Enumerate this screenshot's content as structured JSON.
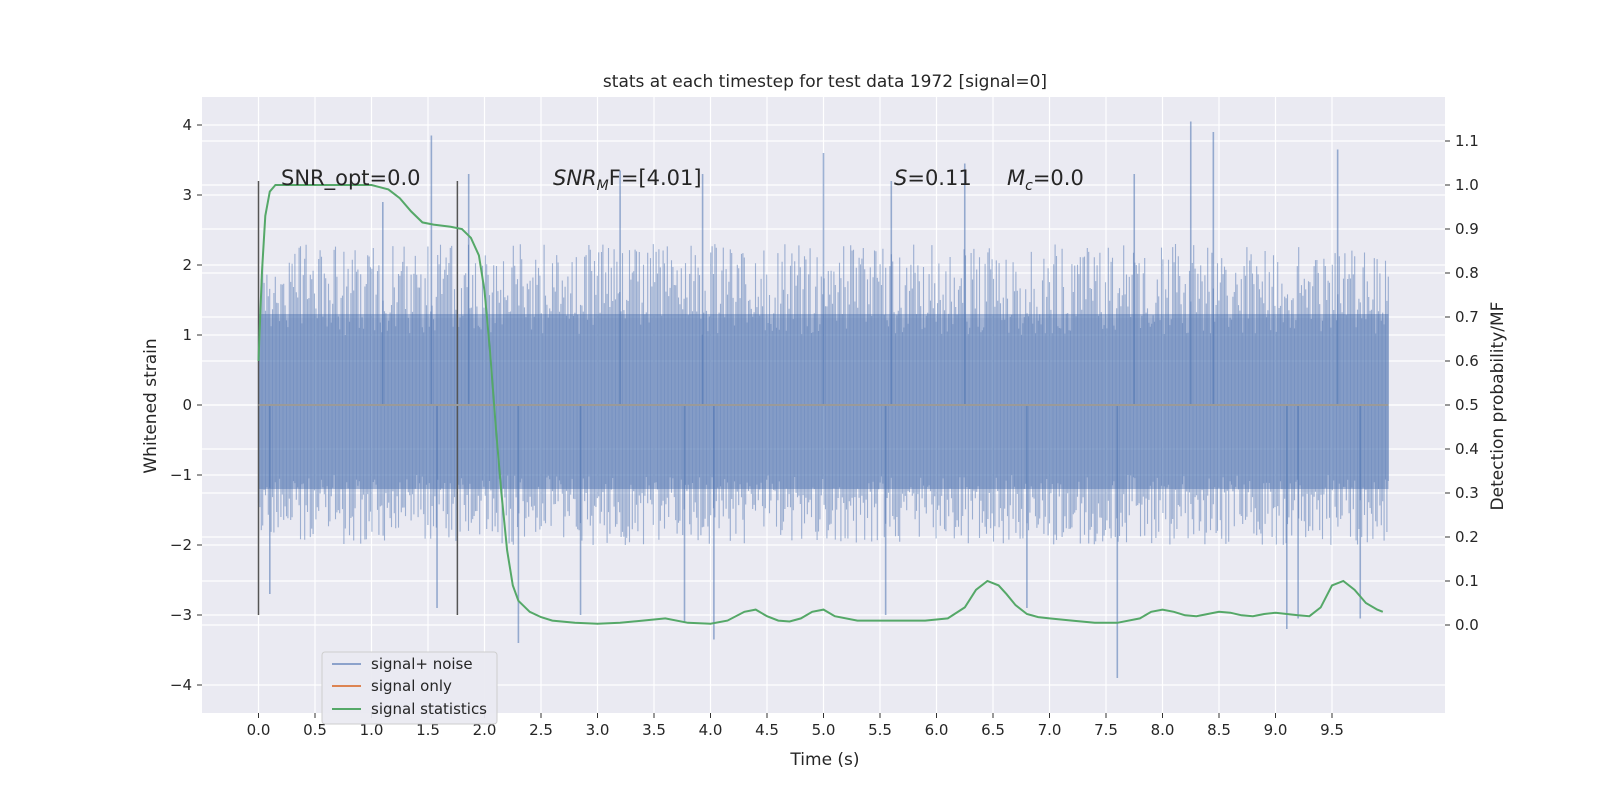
{
  "chart_data": {
    "type": "line",
    "title": "stats at each timestep for test data 1972 [signal=0]",
    "xlabel": "Time (s)",
    "ylabel_left": "Whitened strain",
    "ylabel_right": "Detection probability/MF",
    "xlim": [
      -0.5,
      10.5
    ],
    "ylim_left": [
      -4.4,
      4.4
    ],
    "ylim_right": [
      -0.2,
      1.2
    ],
    "x_ticks": [
      "0.0",
      "0.5",
      "1.0",
      "1.5",
      "2.0",
      "2.5",
      "3.0",
      "3.5",
      "4.0",
      "4.5",
      "5.0",
      "5.5",
      "6.0",
      "6.5",
      "7.0",
      "7.5",
      "8.0",
      "8.5",
      "9.0",
      "9.5"
    ],
    "y_left_ticks": [
      "4",
      "3",
      "2",
      "1",
      "0",
      "−1",
      "−2",
      "−3",
      "−4"
    ],
    "y_right_ticks": [
      "1.1",
      "1.0",
      "0.9",
      "0.8",
      "0.7",
      "0.6",
      "0.5",
      "0.4",
      "0.3",
      "0.2",
      "0.1",
      "0.0"
    ],
    "grid": true,
    "legend_position": "lower-left",
    "colors": {
      "background": "#eaeaf2",
      "grid": "#ffffff",
      "noise": "#4c72b0",
      "signal_only": "#dd8452",
      "statistics": "#55a868",
      "marker": "#555555"
    },
    "annotations": {
      "snr_opt": "SNR_opt=0.0",
      "snr_mf_prefix": "SNR",
      "snr_mf_sub": "M",
      "snr_mf_suffix": "F=[4.01]",
      "s_label": "S",
      "s_value": "=0.11",
      "mc_label": "M",
      "mc_sub": "c",
      "mc_value": "=0.0"
    },
    "vertical_markers": [
      0.0,
      1.76
    ],
    "marker_range_left": [
      -3.0,
      3.2
    ],
    "series": [
      {
        "name": "signal+ noise",
        "kind": "strain",
        "x_range": [
          0.0,
          10.0
        ],
        "envelope_left": [
          -2.0,
          2.3
        ],
        "spikes": [
          {
            "x": 1.53,
            "y": 3.85
          },
          {
            "x": 1.58,
            "y": -2.9
          },
          {
            "x": 1.86,
            "y": 3.3
          },
          {
            "x": 2.3,
            "y": -3.4
          },
          {
            "x": 4.03,
            "y": -3.35
          },
          {
            "x": 3.93,
            "y": 3.3
          },
          {
            "x": 5.0,
            "y": 3.6
          },
          {
            "x": 5.55,
            "y": -3.0
          },
          {
            "x": 7.6,
            "y": -3.9
          },
          {
            "x": 8.25,
            "y": 4.05
          },
          {
            "x": 8.45,
            "y": 3.9
          },
          {
            "x": 9.1,
            "y": -3.2
          },
          {
            "x": 9.55,
            "y": 3.65
          },
          {
            "x": 7.75,
            "y": 3.3
          },
          {
            "x": 6.25,
            "y": 3.45
          },
          {
            "x": 0.1,
            "y": -2.7
          },
          {
            "x": 3.2,
            "y": 3.35
          },
          {
            "x": 5.6,
            "y": 3.2
          },
          {
            "x": 2.85,
            "y": -3.0
          },
          {
            "x": 3.77,
            "y": -3.1
          },
          {
            "x": 9.2,
            "y": -3.05
          },
          {
            "x": 6.8,
            "y": -2.9
          },
          {
            "x": 9.75,
            "y": -3.05
          },
          {
            "x": 1.1,
            "y": 2.9
          }
        ]
      },
      {
        "name": "signal only",
        "kind": "flat",
        "x": [
          0.0,
          10.0
        ],
        "y": [
          0.0,
          0.0
        ]
      },
      {
        "name": "signal statistics",
        "kind": "probability",
        "x": [
          0.0,
          0.03,
          0.06,
          0.1,
          0.15,
          0.25,
          0.4,
          0.6,
          0.8,
          1.0,
          1.15,
          1.25,
          1.35,
          1.45,
          1.55,
          1.7,
          1.8,
          1.88,
          1.95,
          2.0,
          2.05,
          2.1,
          2.15,
          2.2,
          2.25,
          2.3,
          2.4,
          2.5,
          2.6,
          2.8,
          3.0,
          3.2,
          3.4,
          3.6,
          3.8,
          4.0,
          4.15,
          4.3,
          4.4,
          4.5,
          4.6,
          4.7,
          4.8,
          4.9,
          5.0,
          5.1,
          5.3,
          5.5,
          5.7,
          5.9,
          6.1,
          6.25,
          6.35,
          6.45,
          6.55,
          6.62,
          6.7,
          6.8,
          6.9,
          7.0,
          7.2,
          7.4,
          7.6,
          7.8,
          7.9,
          8.0,
          8.1,
          8.2,
          8.3,
          8.4,
          8.5,
          8.6,
          8.7,
          8.8,
          8.9,
          9.0,
          9.1,
          9.2,
          9.3,
          9.4,
          9.5,
          9.6,
          9.7,
          9.8,
          9.9,
          9.95
        ],
        "y": [
          0.6,
          0.8,
          0.93,
          0.985,
          1.0,
          1.0,
          1.0,
          1.0,
          1.0,
          1.0,
          0.99,
          0.97,
          0.94,
          0.915,
          0.91,
          0.905,
          0.9,
          0.88,
          0.84,
          0.76,
          0.62,
          0.45,
          0.3,
          0.17,
          0.09,
          0.055,
          0.03,
          0.018,
          0.01,
          0.005,
          0.003,
          0.005,
          0.01,
          0.015,
          0.005,
          0.003,
          0.01,
          0.03,
          0.035,
          0.02,
          0.01,
          0.008,
          0.015,
          0.03,
          0.035,
          0.02,
          0.01,
          0.01,
          0.01,
          0.01,
          0.015,
          0.04,
          0.08,
          0.1,
          0.09,
          0.07,
          0.045,
          0.025,
          0.018,
          0.015,
          0.01,
          0.005,
          0.005,
          0.015,
          0.03,
          0.035,
          0.03,
          0.022,
          0.02,
          0.025,
          0.03,
          0.028,
          0.022,
          0.02,
          0.025,
          0.028,
          0.025,
          0.022,
          0.02,
          0.04,
          0.09,
          0.1,
          0.08,
          0.05,
          0.035,
          0.03
        ]
      }
    ]
  }
}
